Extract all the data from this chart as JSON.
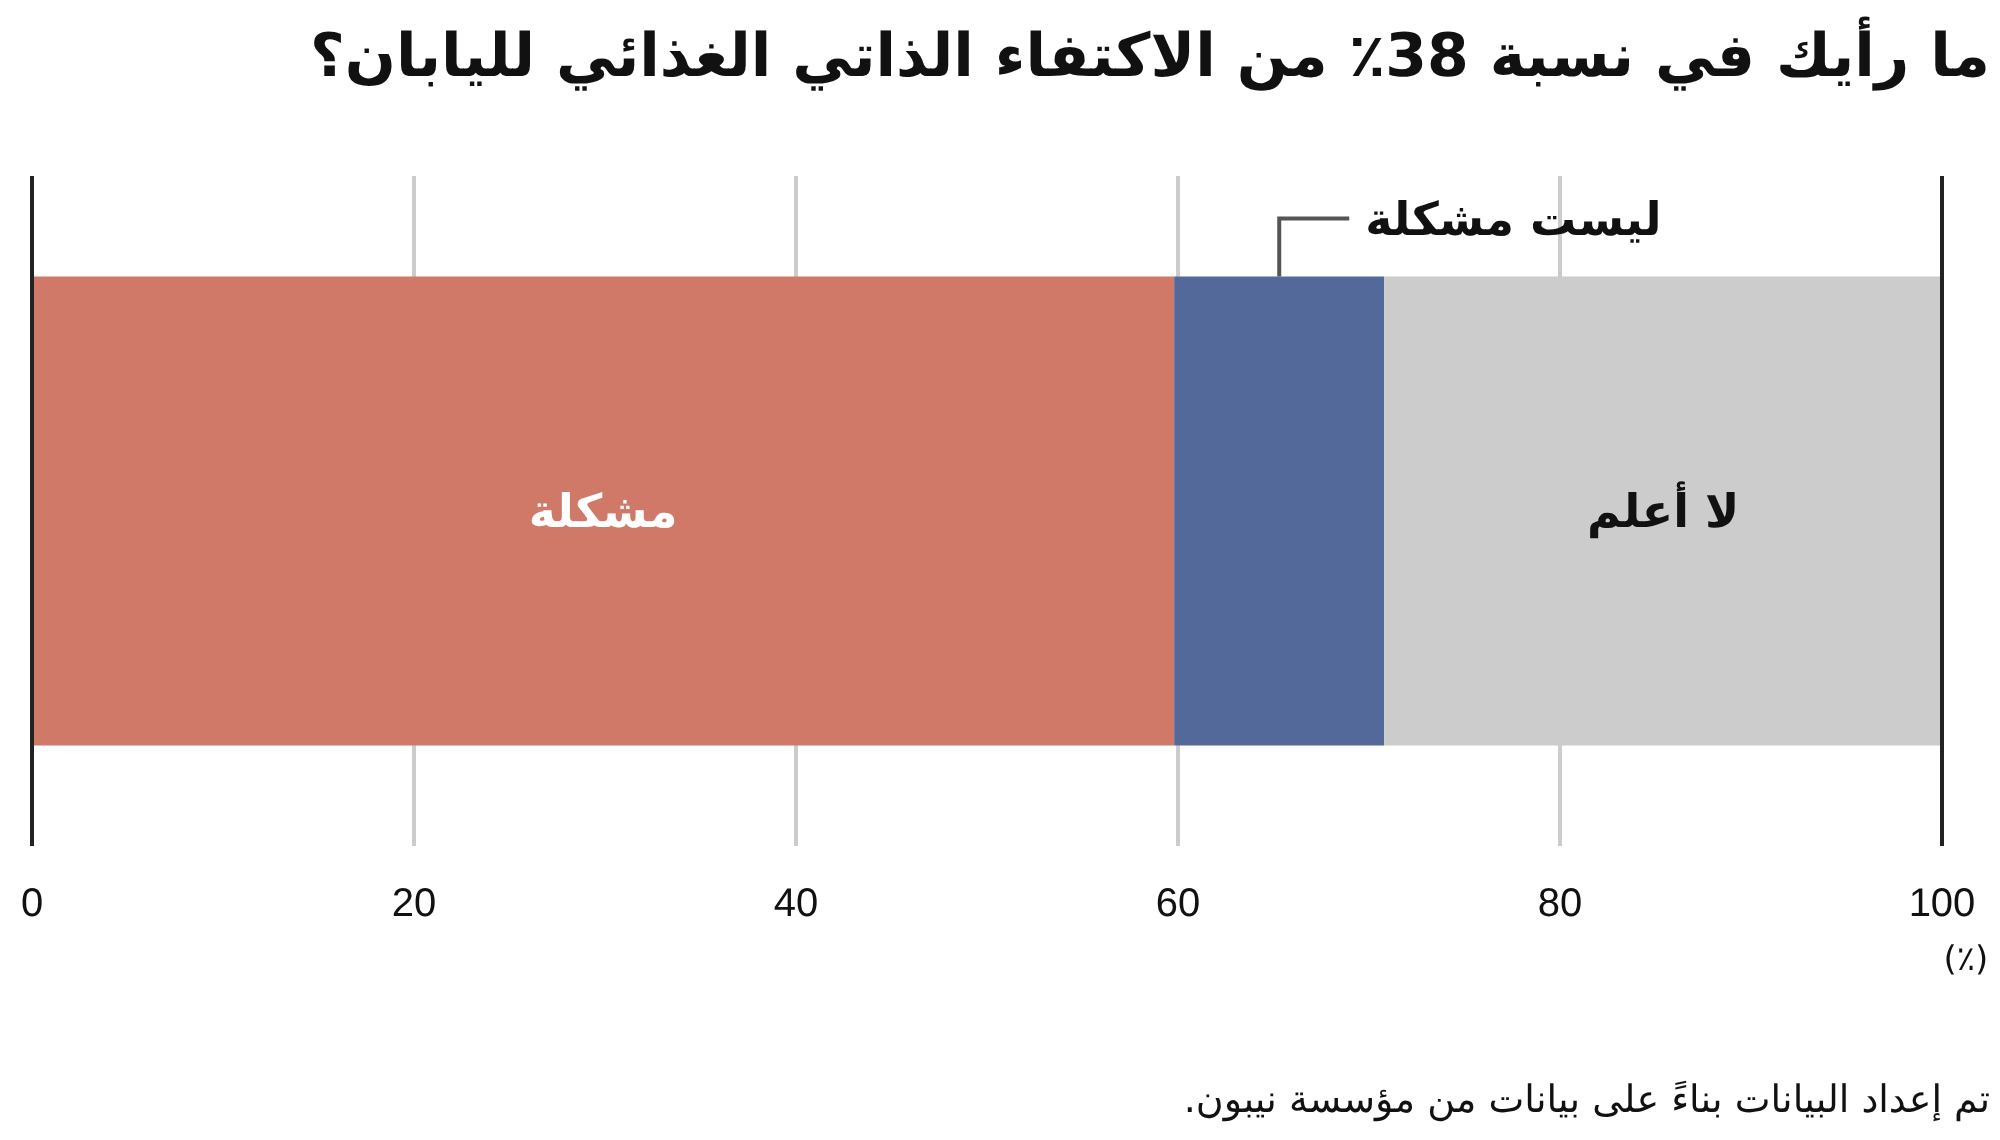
{
  "chart_data": {
    "type": "bar",
    "orientation": "horizontal",
    "stacked": true,
    "title": "ما رأيك في نسبة 38٪ من الاكتفاء الذاتي الغذائي لليابان؟",
    "xlabel": "(٪)",
    "categories": [
      null
    ],
    "series": [
      {
        "name": "مشكلة",
        "color": "#d07969",
        "values": [
          59.8
        ]
      },
      {
        "name": "ليست مشكلة",
        "color": "#536999",
        "values": [
          11.0
        ]
      },
      {
        "name": "لا أعلم",
        "color": "#cccccc",
        "values": [
          29.2
        ]
      }
    ],
    "xlim": [
      0,
      100
    ],
    "xticks": [
      0,
      20,
      40,
      60,
      80,
      100
    ],
    "grid": "x",
    "annotations": [
      "تم إعداد البيانات بناءً على بيانات من مؤسسة نيبون."
    ]
  }
}
